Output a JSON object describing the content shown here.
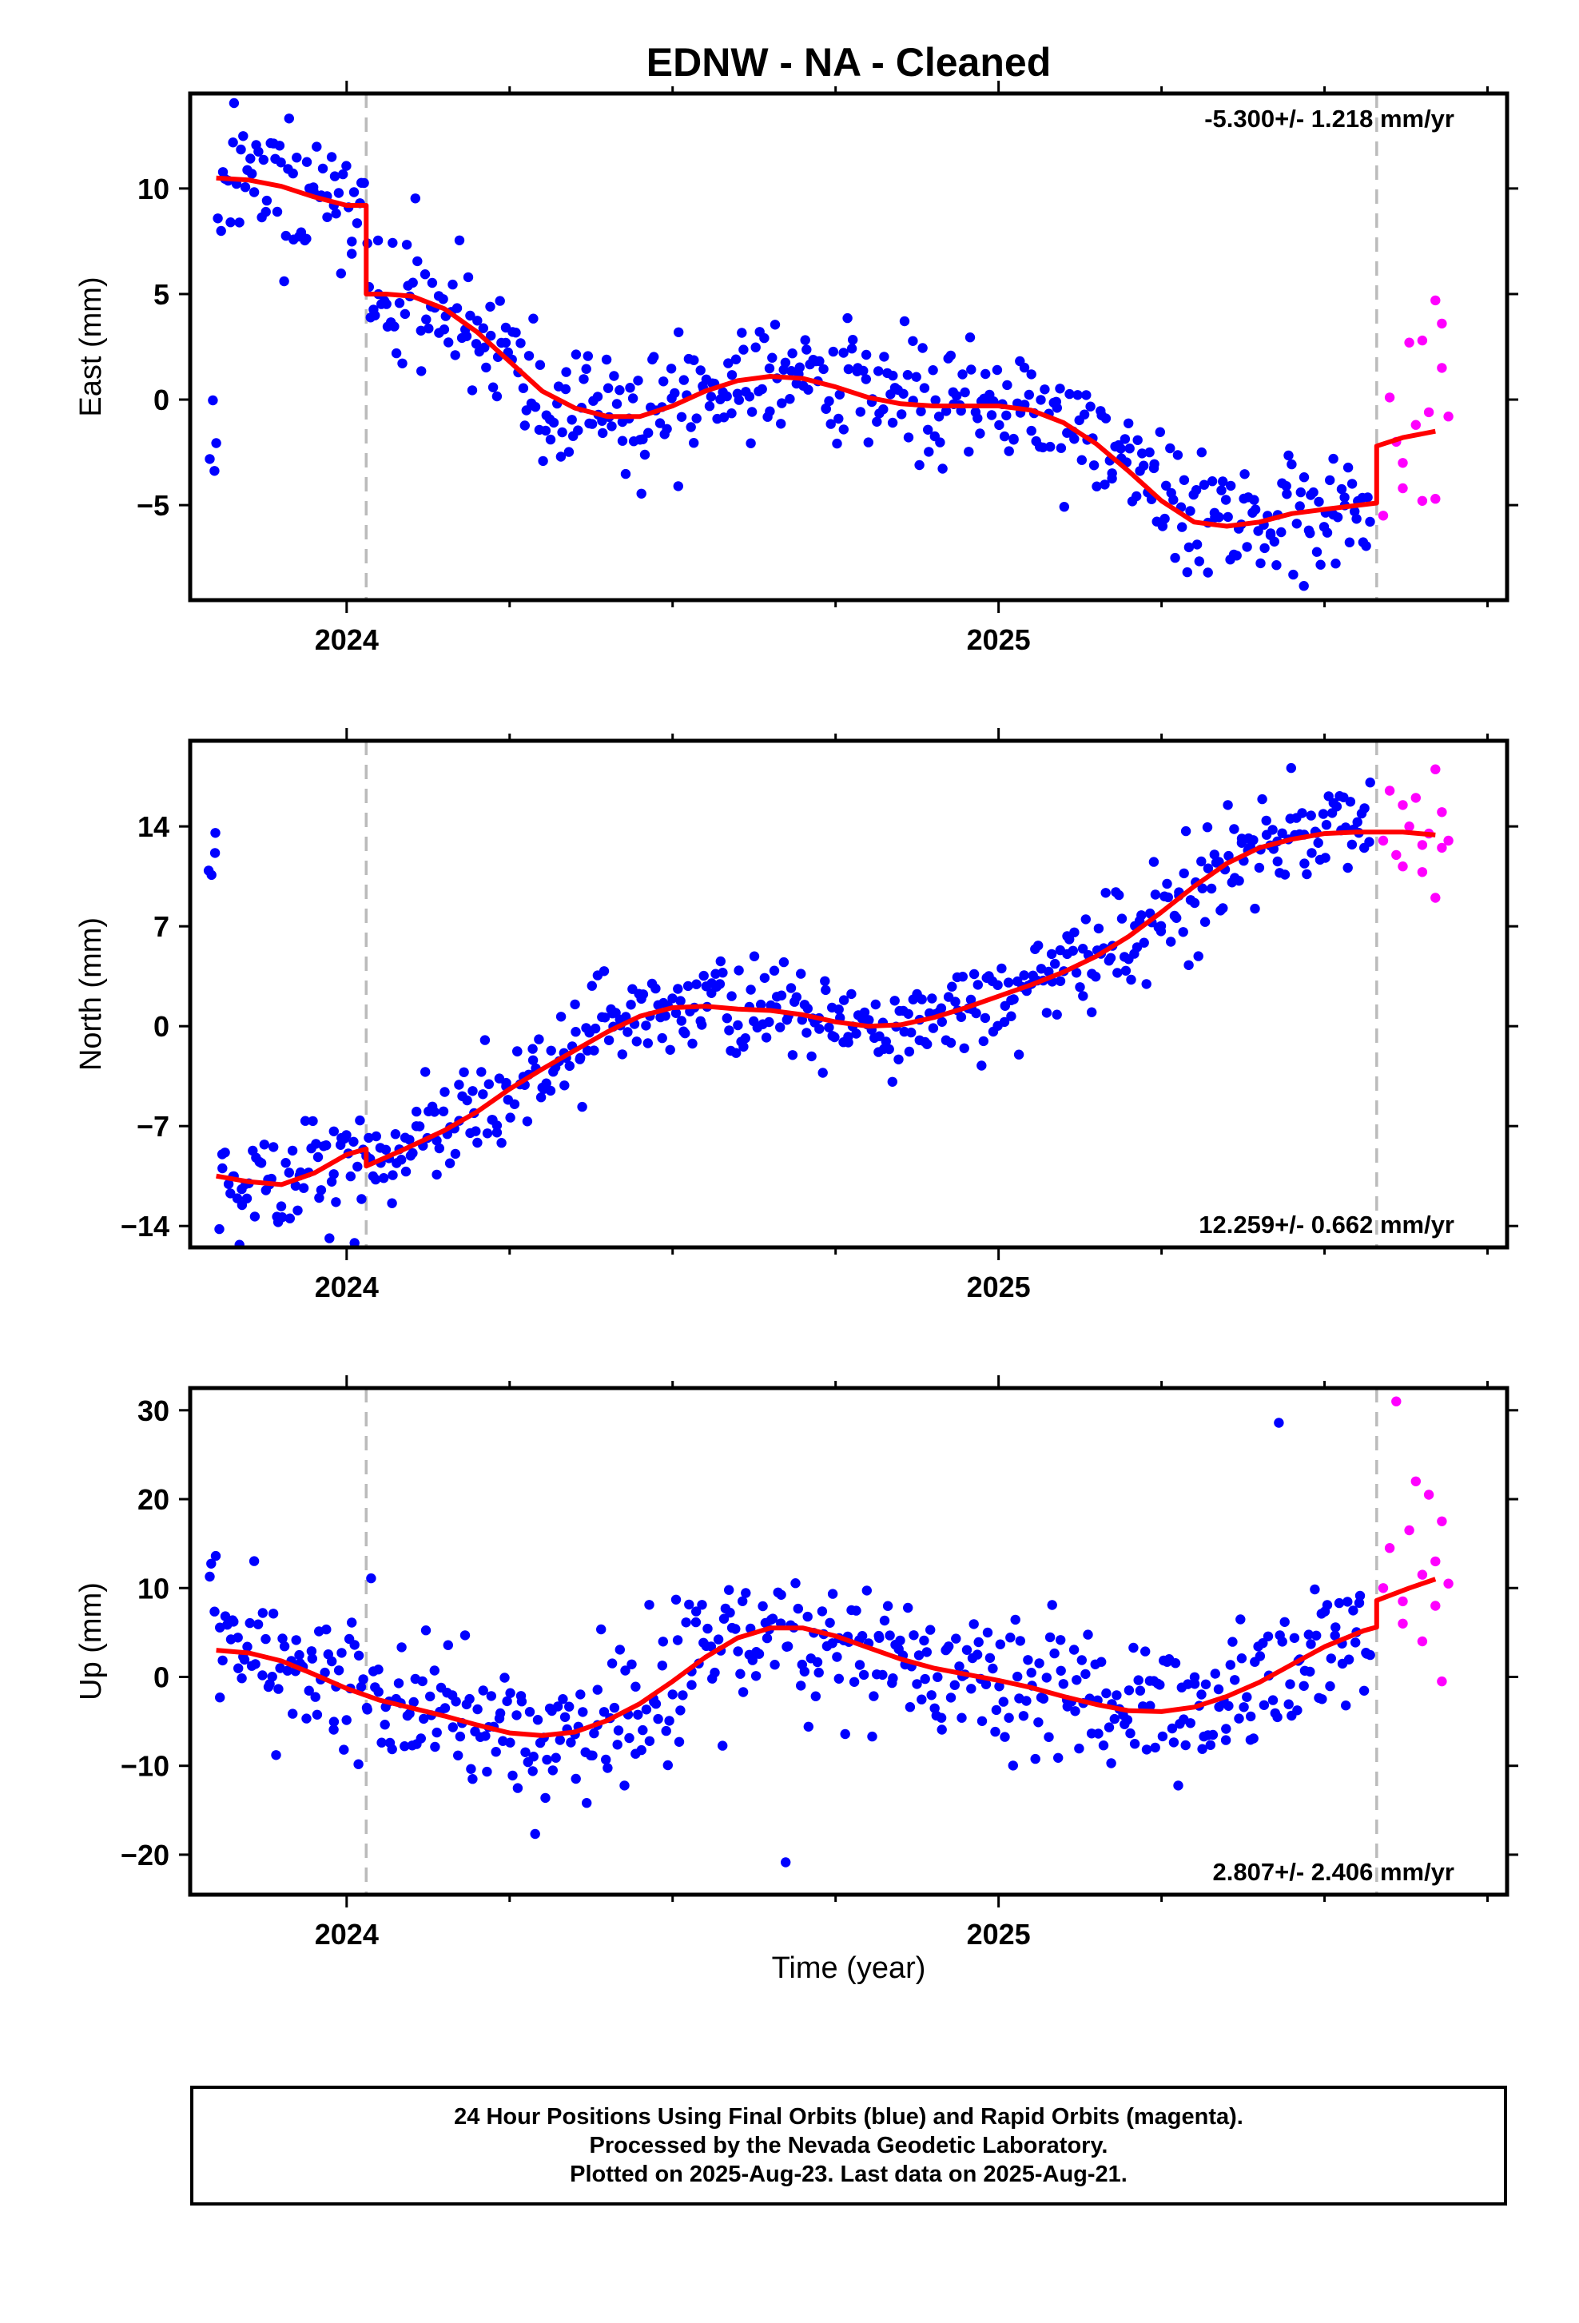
{
  "title": "EDNW  - NA - Cleaned",
  "x_axis_label": "Time (year)",
  "caption": {
    "line1": "24 Hour Positions Using Final Orbits (blue) and Rapid Orbits (magenta).",
    "line2": "Processed by the Nevada Geodetic Laboratory.",
    "line3": "Plotted on 2025-Aug-23. Last data on 2025-Aug-21."
  },
  "colors": {
    "final_points": "#0000ff",
    "rapid_points": "#ff00ff",
    "model_line": "#ff0000",
    "dashed_lines": "#bbbbbb"
  },
  "chart_data": [
    {
      "type": "scatter",
      "name": "east",
      "ylabel": "East (mm)",
      "xlim": [
        2023.76,
        2025.78
      ],
      "ylim": [
        -9.5,
        14.5
      ],
      "yticks": [
        -5,
        0,
        5,
        10
      ],
      "xticks_major": [
        2024,
        2025
      ],
      "xticks_minor": [
        2023.75,
        2024.25,
        2024.5,
        2024.75,
        2025.25,
        2025.5,
        2025.75
      ],
      "vlines": [
        2024.03,
        2025.58
      ],
      "rate": "-5.300+/- 1.218 mm/yr",
      "rate_position": "top-right",
      "model": [
        [
          2023.8,
          10.5
        ],
        [
          2023.85,
          10.4
        ],
        [
          2023.9,
          10.1
        ],
        [
          2023.95,
          9.6
        ],
        [
          2024.0,
          9.2
        ],
        [
          2024.03,
          9.2
        ],
        [
          2024.03,
          5.0
        ],
        [
          2024.06,
          5.0
        ],
        [
          2024.1,
          4.9
        ],
        [
          2024.15,
          4.3
        ],
        [
          2024.2,
          3.2
        ],
        [
          2024.25,
          1.8
        ],
        [
          2024.3,
          0.4
        ],
        [
          2024.35,
          -0.4
        ],
        [
          2024.4,
          -0.8
        ],
        [
          2024.45,
          -0.8
        ],
        [
          2024.5,
          -0.3
        ],
        [
          2024.55,
          0.4
        ],
        [
          2024.6,
          0.9
        ],
        [
          2024.65,
          1.1
        ],
        [
          2024.7,
          1.0
        ],
        [
          2024.75,
          0.6
        ],
        [
          2024.8,
          0.1
        ],
        [
          2024.85,
          -0.2
        ],
        [
          2024.9,
          -0.3
        ],
        [
          2024.95,
          -0.3
        ],
        [
          2025.0,
          -0.3
        ],
        [
          2025.05,
          -0.5
        ],
        [
          2025.1,
          -1.1
        ],
        [
          2025.15,
          -2.1
        ],
        [
          2025.2,
          -3.4
        ],
        [
          2025.25,
          -4.8
        ],
        [
          2025.3,
          -5.8
        ],
        [
          2025.35,
          -6.0
        ],
        [
          2025.4,
          -5.8
        ],
        [
          2025.45,
          -5.4
        ],
        [
          2025.5,
          -5.2
        ],
        [
          2025.58,
          -4.9
        ],
        [
          2025.58,
          -2.2
        ],
        [
          2025.62,
          -1.8
        ],
        [
          2025.67,
          -1.5
        ]
      ],
      "points_seed": 11,
      "points_count": 520,
      "points_x_range": [
        2023.79,
        2025.57
      ],
      "points_noise": 1.5,
      "rapid_points": [
        [
          2025.59,
          -5.5
        ],
        [
          2025.6,
          0.1
        ],
        [
          2025.61,
          -2.0
        ],
        [
          2025.62,
          -3.0
        ],
        [
          2025.62,
          -4.2
        ],
        [
          2025.63,
          2.7
        ],
        [
          2025.64,
          -1.2
        ],
        [
          2025.65,
          2.8
        ],
        [
          2025.65,
          -4.8
        ],
        [
          2025.66,
          -0.6
        ],
        [
          2025.67,
          4.7
        ],
        [
          2025.67,
          -4.7
        ],
        [
          2025.68,
          3.6
        ],
        [
          2025.68,
          1.5
        ],
        [
          2025.69,
          -0.8
        ]
      ]
    },
    {
      "type": "scatter",
      "name": "north",
      "ylabel": "North (mm)",
      "xlim": [
        2023.76,
        2025.78
      ],
      "ylim": [
        -15.5,
        20.0
      ],
      "yticks": [
        -14,
        -7,
        0,
        7,
        14
      ],
      "xticks_major": [
        2024,
        2025
      ],
      "xticks_minor": [
        2023.75,
        2024.25,
        2024.5,
        2024.75,
        2025.25,
        2025.5,
        2025.75
      ],
      "vlines": [
        2024.03,
        2025.58
      ],
      "rate": "12.259+/- 0.662 mm/yr",
      "rate_position": "bottom-right",
      "model": [
        [
          2023.8,
          -10.5
        ],
        [
          2023.85,
          -10.9
        ],
        [
          2023.9,
          -11.1
        ],
        [
          2023.95,
          -10.3
        ],
        [
          2024.0,
          -9.0
        ],
        [
          2024.03,
          -8.6
        ],
        [
          2024.03,
          -9.8
        ],
        [
          2024.08,
          -8.8
        ],
        [
          2024.15,
          -7.3
        ],
        [
          2024.2,
          -6.0
        ],
        [
          2024.25,
          -4.4
        ],
        [
          2024.3,
          -3.0
        ],
        [
          2024.35,
          -1.7
        ],
        [
          2024.4,
          -0.4
        ],
        [
          2024.45,
          0.7
        ],
        [
          2024.5,
          1.3
        ],
        [
          2024.55,
          1.4
        ],
        [
          2024.6,
          1.2
        ],
        [
          2024.65,
          1.1
        ],
        [
          2024.7,
          0.8
        ],
        [
          2024.75,
          0.3
        ],
        [
          2024.8,
          0.0
        ],
        [
          2024.85,
          0.1
        ],
        [
          2024.9,
          0.6
        ],
        [
          2024.95,
          1.3
        ],
        [
          2025.0,
          2.1
        ],
        [
          2025.05,
          2.9
        ],
        [
          2025.1,
          3.8
        ],
        [
          2025.15,
          4.9
        ],
        [
          2025.2,
          6.3
        ],
        [
          2025.25,
          8.0
        ],
        [
          2025.3,
          9.8
        ],
        [
          2025.35,
          11.4
        ],
        [
          2025.4,
          12.5
        ],
        [
          2025.45,
          13.1
        ],
        [
          2025.5,
          13.5
        ],
        [
          2025.55,
          13.6
        ],
        [
          2025.58,
          13.6
        ],
        [
          2025.62,
          13.6
        ],
        [
          2025.67,
          13.4
        ]
      ],
      "points_seed": 23,
      "points_count": 520,
      "points_x_range": [
        2023.79,
        2025.57
      ],
      "points_noise": 1.6,
      "rapid_points": [
        [
          2025.59,
          13.0
        ],
        [
          2025.6,
          16.5
        ],
        [
          2025.61,
          12.0
        ],
        [
          2025.62,
          15.5
        ],
        [
          2025.62,
          11.2
        ],
        [
          2025.63,
          14.0
        ],
        [
          2025.64,
          16.0
        ],
        [
          2025.65,
          12.7
        ],
        [
          2025.65,
          10.8
        ],
        [
          2025.66,
          13.5
        ],
        [
          2025.67,
          18.0
        ],
        [
          2025.67,
          9.0
        ],
        [
          2025.68,
          12.5
        ],
        [
          2025.68,
          15.0
        ],
        [
          2025.69,
          13.0
        ]
      ]
    },
    {
      "type": "scatter",
      "name": "up",
      "ylabel": "Up (mm)",
      "xlim": [
        2023.76,
        2025.78
      ],
      "ylim": [
        -24.5,
        32.5
      ],
      "yticks": [
        -20,
        -10,
        0,
        10,
        20,
        30
      ],
      "xticks_major": [
        2024,
        2025
      ],
      "xticks_minor": [
        2023.75,
        2024.25,
        2024.5,
        2024.75,
        2025.25,
        2025.5,
        2025.75
      ],
      "vlines": [
        2024.03,
        2025.58
      ],
      "rate": "2.807+/- 2.406 mm/yr",
      "rate_position": "bottom-right",
      "model": [
        [
          2023.8,
          3.0
        ],
        [
          2023.85,
          2.7
        ],
        [
          2023.9,
          1.8
        ],
        [
          2023.95,
          0.3
        ],
        [
          2024.0,
          -1.3
        ],
        [
          2024.05,
          -2.6
        ],
        [
          2024.1,
          -3.5
        ],
        [
          2024.15,
          -4.4
        ],
        [
          2024.2,
          -5.4
        ],
        [
          2024.25,
          -6.3
        ],
        [
          2024.3,
          -6.6
        ],
        [
          2024.35,
          -6.2
        ],
        [
          2024.4,
          -4.9
        ],
        [
          2024.45,
          -3.0
        ],
        [
          2024.5,
          -0.5
        ],
        [
          2024.55,
          2.2
        ],
        [
          2024.6,
          4.4
        ],
        [
          2024.65,
          5.5
        ],
        [
          2024.7,
          5.5
        ],
        [
          2024.75,
          4.6
        ],
        [
          2024.8,
          3.3
        ],
        [
          2024.85,
          2.0
        ],
        [
          2024.9,
          1.0
        ],
        [
          2024.95,
          0.3
        ],
        [
          2025.0,
          -0.4
        ],
        [
          2025.05,
          -1.2
        ],
        [
          2025.1,
          -2.2
        ],
        [
          2025.15,
          -3.1
        ],
        [
          2025.2,
          -3.8
        ],
        [
          2025.25,
          -3.9
        ],
        [
          2025.3,
          -3.4
        ],
        [
          2025.35,
          -2.2
        ],
        [
          2025.4,
          -0.6
        ],
        [
          2025.45,
          1.4
        ],
        [
          2025.5,
          3.4
        ],
        [
          2025.56,
          5.2
        ],
        [
          2025.58,
          5.6
        ],
        [
          2025.58,
          8.6
        ],
        [
          2025.63,
          10.0
        ],
        [
          2025.67,
          11.0
        ]
      ],
      "points_seed": 37,
      "points_count": 520,
      "points_x_range": [
        2023.79,
        2025.57
      ],
      "points_noise": 3.8,
      "rapid_points": [
        [
          2025.59,
          10.0
        ],
        [
          2025.6,
          14.5
        ],
        [
          2025.61,
          31.0
        ],
        [
          2025.62,
          8.5
        ],
        [
          2025.62,
          6.0
        ],
        [
          2025.63,
          16.5
        ],
        [
          2025.64,
          22.0
        ],
        [
          2025.65,
          11.5
        ],
        [
          2025.65,
          4.0
        ],
        [
          2025.66,
          20.5
        ],
        [
          2025.67,
          13.0
        ],
        [
          2025.67,
          8.0
        ],
        [
          2025.68,
          17.5
        ],
        [
          2025.68,
          -0.5
        ],
        [
          2025.69,
          10.5
        ]
      ]
    }
  ]
}
